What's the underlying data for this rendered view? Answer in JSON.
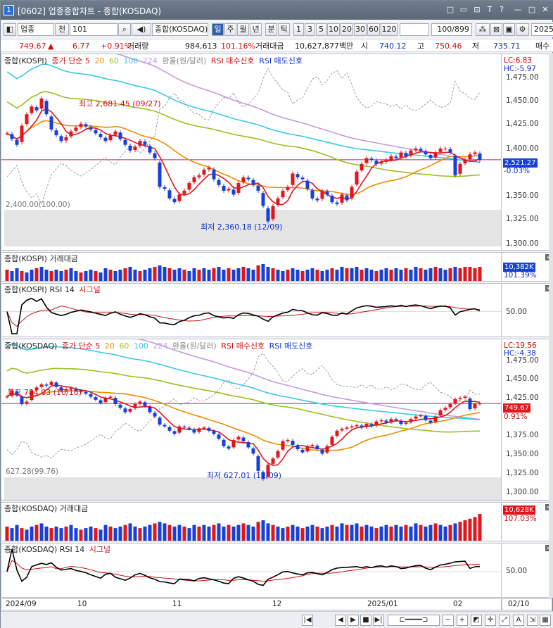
{
  "window": {
    "number": "1",
    "title": "[0602] 업종종합차트 - 종합(KOSDAQ)",
    "controls": [
      "□",
      "▭",
      "⊡",
      "T",
      "?",
      "—",
      "□",
      "✕"
    ]
  },
  "toolbar": {
    "market": "업종",
    "all_label": "전",
    "code": "101",
    "name": "종합(KOSDAQ)",
    "periods": [
      "일",
      "주",
      "월",
      "년",
      "분",
      "틱"
    ],
    "active_period": "일",
    "numbers": [
      "1",
      "3",
      "5",
      "10",
      "20",
      "30",
      "60",
      "120"
    ],
    "count": "100/899",
    "year": "2025"
  },
  "quote": {
    "price": "749.67",
    "arrow": "▲",
    "change": "6.77",
    "rate": "+0.91%",
    "volume_label": "거래량",
    "volume": "984,613",
    "volume_rate": "101.16%",
    "amount_label": "거래대금",
    "amount": "10,627,877백만",
    "open_label": "시",
    "open": "740.12",
    "high_label": "고",
    "high": "750.46",
    "low_label": "저",
    "low": "735.71",
    "tail": "매수"
  },
  "kospi_price": {
    "header": [
      "종합(KOSPI)",
      "종가 단순 5",
      "20",
      "60",
      "100",
      "224",
      "환율(원/달러)",
      "RSI 매수신호",
      "RSI 매도신호"
    ],
    "lc": "LC:6.83",
    "hc": "HC:-5.97",
    "axis_labels": [
      "1,475.00",
      "1,450.00",
      "1,425.00",
      "1,400.00",
      "1,375.00",
      "1,350.00",
      "1,325.00",
      "1,300.00"
    ],
    "current_value": "2,521.27",
    "current_rate": "-0.03%",
    "max_label": "최고 2,681.45 (09/27)",
    "min_label": "최저 2,360.18 (12/09)",
    "base_label": "2,400.00(100.00)"
  },
  "kospi_volume": {
    "header": "종합(KOSPI) 거래대금",
    "value": "10,382K",
    "rate": "101.39%"
  },
  "kospi_rsi": {
    "header_a": "종합(KOSPI) RSI 14",
    "header_b": "시그널",
    "axis_label": "50.00"
  },
  "kosdaq_price": {
    "header": [
      "종합(KOSDAQ)",
      "종가 단순 5",
      "20",
      "60",
      "100",
      "224",
      "환율(원/달러)",
      "RSI 매수신호",
      "RSI 매도신호"
    ],
    "lc": "LC:19.56",
    "hc": "HC:-4.38",
    "axis_labels": [
      "1,475.00",
      "1,450.00",
      "1,425.00",
      "1,400.00",
      "1,375.00",
      "1,350.00",
      "1,325.00",
      "1,300.00"
    ],
    "current_value": "749.67",
    "current_rate": "0.91%",
    "max_label": "최고 784.03 (10/10)",
    "min_label": "최저 627.01 (12/09)",
    "base_label": "627.28(99.76)"
  },
  "kosdaq_volume": {
    "header": "종합(KOSDAQ) 거래대금",
    "value": "10,628K",
    "rate": "107.03%"
  },
  "kosdaq_rsi": {
    "header_a": "종합(KOSDAQ) RSI 14",
    "header_b": "시그널",
    "axis_label": "50.00"
  },
  "dates": [
    "2024/09",
    "10",
    "11",
    "12",
    "2025/01",
    "02"
  ],
  "date_right": "02/10",
  "colors": {
    "up": "#e0161b",
    "down": "#1740d8",
    "ma5": "#e0161b",
    "ma20": "#f08c00",
    "ma60": "#9cc020",
    "ma100": "#3bc8e6",
    "ma224": "#c39be0",
    "fx": "#888888",
    "rsi": "#000000",
    "signal": "#d01010"
  },
  "series": {
    "kospi_close": [
      2590,
      2575,
      2560,
      2610,
      2640,
      2660,
      2650,
      2681,
      2640,
      2600,
      2585,
      2570,
      2580,
      2595,
      2605,
      2615,
      2608,
      2600,
      2590,
      2580,
      2570,
      2585,
      2595,
      2575,
      2560,
      2545,
      2555,
      2570,
      2560,
      2540,
      2525,
      2450,
      2445,
      2420,
      2410,
      2430,
      2440,
      2460,
      2475,
      2480,
      2495,
      2500,
      2470,
      2455,
      2440,
      2445,
      2430,
      2460,
      2475,
      2470,
      2455,
      2440,
      2400,
      2360,
      2400,
      2420,
      2440,
      2450,
      2485,
      2475,
      2470,
      2445,
      2420,
      2415,
      2440,
      2430,
      2410,
      2405,
      2430,
      2415,
      2450,
      2490,
      2510,
      2525,
      2520,
      2510,
      2515,
      2520,
      2530,
      2525,
      2540,
      2530,
      2545,
      2550,
      2545,
      2535,
      2525,
      2540,
      2550,
      2550,
      2540,
      2480,
      2510,
      2520,
      2535,
      2540,
      2521
    ],
    "kosdaq_close": [
      760,
      770,
      762,
      748,
      752,
      770,
      775,
      780,
      778,
      784,
      776,
      770,
      772,
      774,
      770,
      768,
      765,
      760,
      755,
      750,
      758,
      760,
      748,
      742,
      735,
      740,
      748,
      752,
      745,
      735,
      728,
      715,
      712,
      705,
      700,
      712,
      710,
      708,
      702,
      708,
      710,
      705,
      700,
      692,
      680,
      676,
      690,
      695,
      688,
      678,
      668,
      640,
      627,
      650,
      660,
      672,
      688,
      690,
      682,
      675,
      670,
      680,
      682,
      675,
      668,
      680,
      695,
      705,
      708,
      710,
      712,
      714,
      710,
      716,
      712,
      720,
      722,
      718,
      724,
      722,
      716,
      718,
      724,
      728,
      730,
      722,
      718,
      728,
      738,
      742,
      748,
      756,
      758,
      760,
      740,
      748,
      749
    ],
    "volume_kospi": [
      8,
      7,
      9,
      7,
      6,
      8,
      9,
      10,
      8,
      7,
      8,
      7,
      8,
      9,
      7,
      6,
      7,
      8,
      7,
      6,
      9,
      8,
      7,
      8,
      9,
      10,
      8,
      7,
      8,
      9,
      10,
      11,
      10,
      9,
      8,
      9,
      8,
      7,
      9,
      8,
      9,
      8,
      9,
      10,
      8,
      9,
      8,
      9,
      10,
      9,
      8,
      11,
      12,
      10,
      9,
      8,
      7,
      8,
      9,
      8,
      7,
      8,
      9,
      8,
      7,
      8,
      9,
      8,
      10,
      9,
      9,
      10,
      8,
      9,
      8,
      7,
      8,
      9,
      8,
      9,
      8,
      9,
      8,
      10,
      9,
      8,
      9,
      10,
      9,
      8,
      9,
      10,
      9,
      10,
      10,
      9,
      10
    ],
    "volume_kosdaq": [
      9,
      8,
      10,
      8,
      7,
      9,
      10,
      11,
      9,
      8,
      9,
      8,
      9,
      10,
      8,
      7,
      8,
      9,
      8,
      7,
      10,
      9,
      8,
      9,
      10,
      11,
      9,
      8,
      9,
      10,
      11,
      12,
      11,
      10,
      9,
      10,
      9,
      8,
      10,
      9,
      10,
      9,
      10,
      11,
      9,
      10,
      9,
      10,
      11,
      10,
      9,
      12,
      13,
      11,
      10,
      9,
      8,
      9,
      10,
      9,
      8,
      9,
      10,
      9,
      8,
      9,
      10,
      9,
      11,
      10,
      10,
      11,
      9,
      10,
      9,
      8,
      9,
      10,
      9,
      10,
      9,
      10,
      9,
      11,
      10,
      9,
      10,
      11,
      10,
      9,
      10,
      11,
      12,
      13,
      14,
      15,
      17
    ]
  }
}
